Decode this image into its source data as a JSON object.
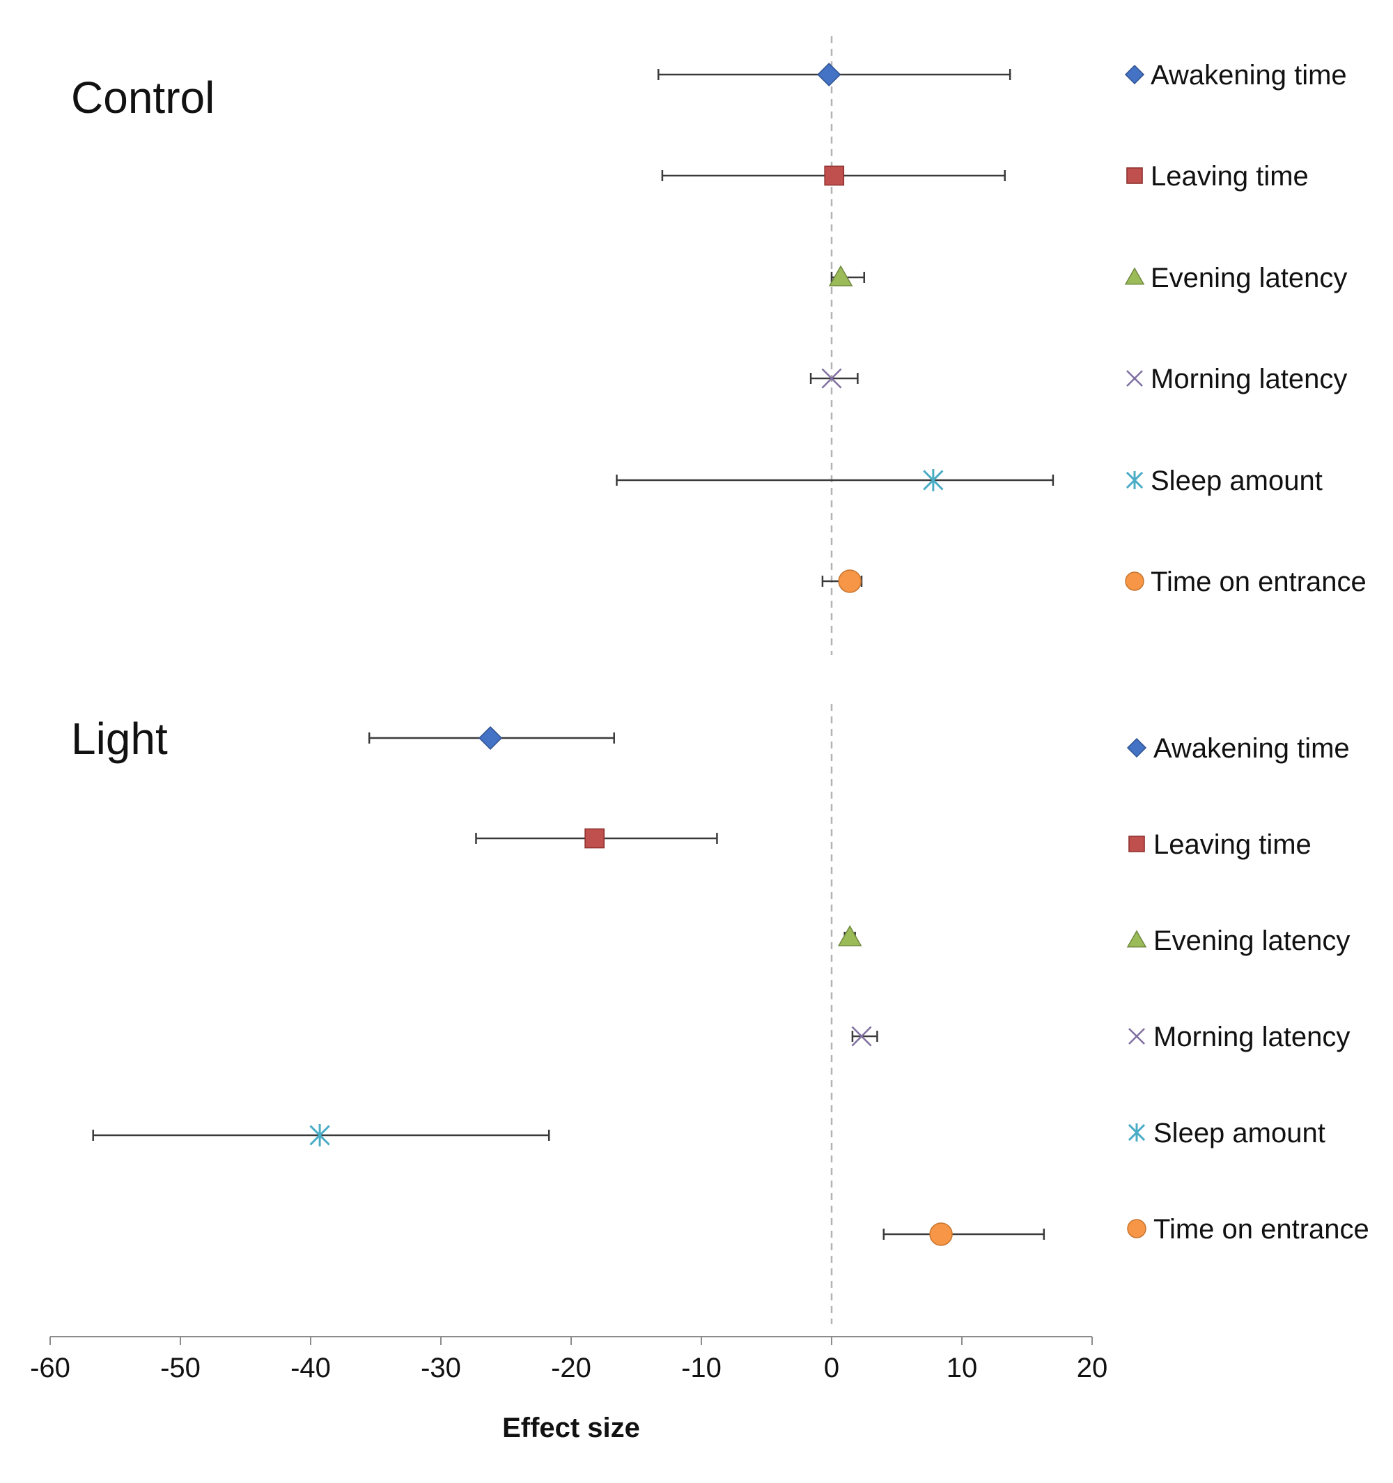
{
  "chart_data": {
    "type": "scatter",
    "subtype": "forest-plot-with-error-bars",
    "xlabel": "Effect size",
    "ylabel": "",
    "xlim": [
      -60,
      20
    ],
    "xticks": [
      -60,
      -50,
      -40,
      -30,
      -20,
      -10,
      0,
      10,
      20
    ],
    "xtick_labels": [
      "-60",
      "-50",
      "-40",
      "-30",
      "-20",
      "-10",
      "0",
      "10",
      "20"
    ],
    "reference_line_x": 0,
    "grid": false,
    "legend_position": "right",
    "series_styles": [
      {
        "name": "Awakening time",
        "marker": "diamond",
        "color": "#4472C4"
      },
      {
        "name": "Leaving time",
        "marker": "square",
        "color": "#C0504D"
      },
      {
        "name": "Evening latency",
        "marker": "triangle",
        "color": "#9BBB59"
      },
      {
        "name": "Morning latency",
        "marker": "x",
        "color": "#7F6F9F"
      },
      {
        "name": "Sleep amount",
        "marker": "star",
        "color": "#4BACC6"
      },
      {
        "name": "Time on entrance",
        "marker": "circle",
        "color": "#F79646"
      }
    ],
    "groups": [
      {
        "name": "Control",
        "points": [
          {
            "label": "Awakening time",
            "value": -0.2,
            "ci_low": -13.3,
            "ci_high": 13.7
          },
          {
            "label": "Leaving time",
            "value": 0.2,
            "ci_low": -13.0,
            "ci_high": 13.3
          },
          {
            "label": "Evening latency",
            "value": 0.7,
            "ci_low": 0.0,
            "ci_high": 2.5
          },
          {
            "label": "Morning latency",
            "value": 0.0,
            "ci_low": -1.6,
            "ci_high": 2.0
          },
          {
            "label": "Sleep amount",
            "value": 7.8,
            "ci_low": -16.5,
            "ci_high": 17.0
          },
          {
            "label": "Time on entrance",
            "value": 1.4,
            "ci_low": -0.7,
            "ci_high": 2.3
          }
        ]
      },
      {
        "name": "Light",
        "points": [
          {
            "label": "Awakening time",
            "value": -26.2,
            "ci_low": -35.5,
            "ci_high": -16.7
          },
          {
            "label": "Leaving time",
            "value": -18.2,
            "ci_low": -27.3,
            "ci_high": -8.8
          },
          {
            "label": "Evening latency",
            "value": 1.4,
            "ci_low": 1.0,
            "ci_high": 1.8
          },
          {
            "label": "Morning latency",
            "value": 2.3,
            "ci_low": 1.6,
            "ci_high": 3.5
          },
          {
            "label": "Sleep amount",
            "value": -39.3,
            "ci_low": -56.7,
            "ci_high": -21.7
          },
          {
            "label": "Time on entrance",
            "value": 8.4,
            "ci_low": 4.0,
            "ci_high": 16.3
          }
        ]
      }
    ]
  }
}
